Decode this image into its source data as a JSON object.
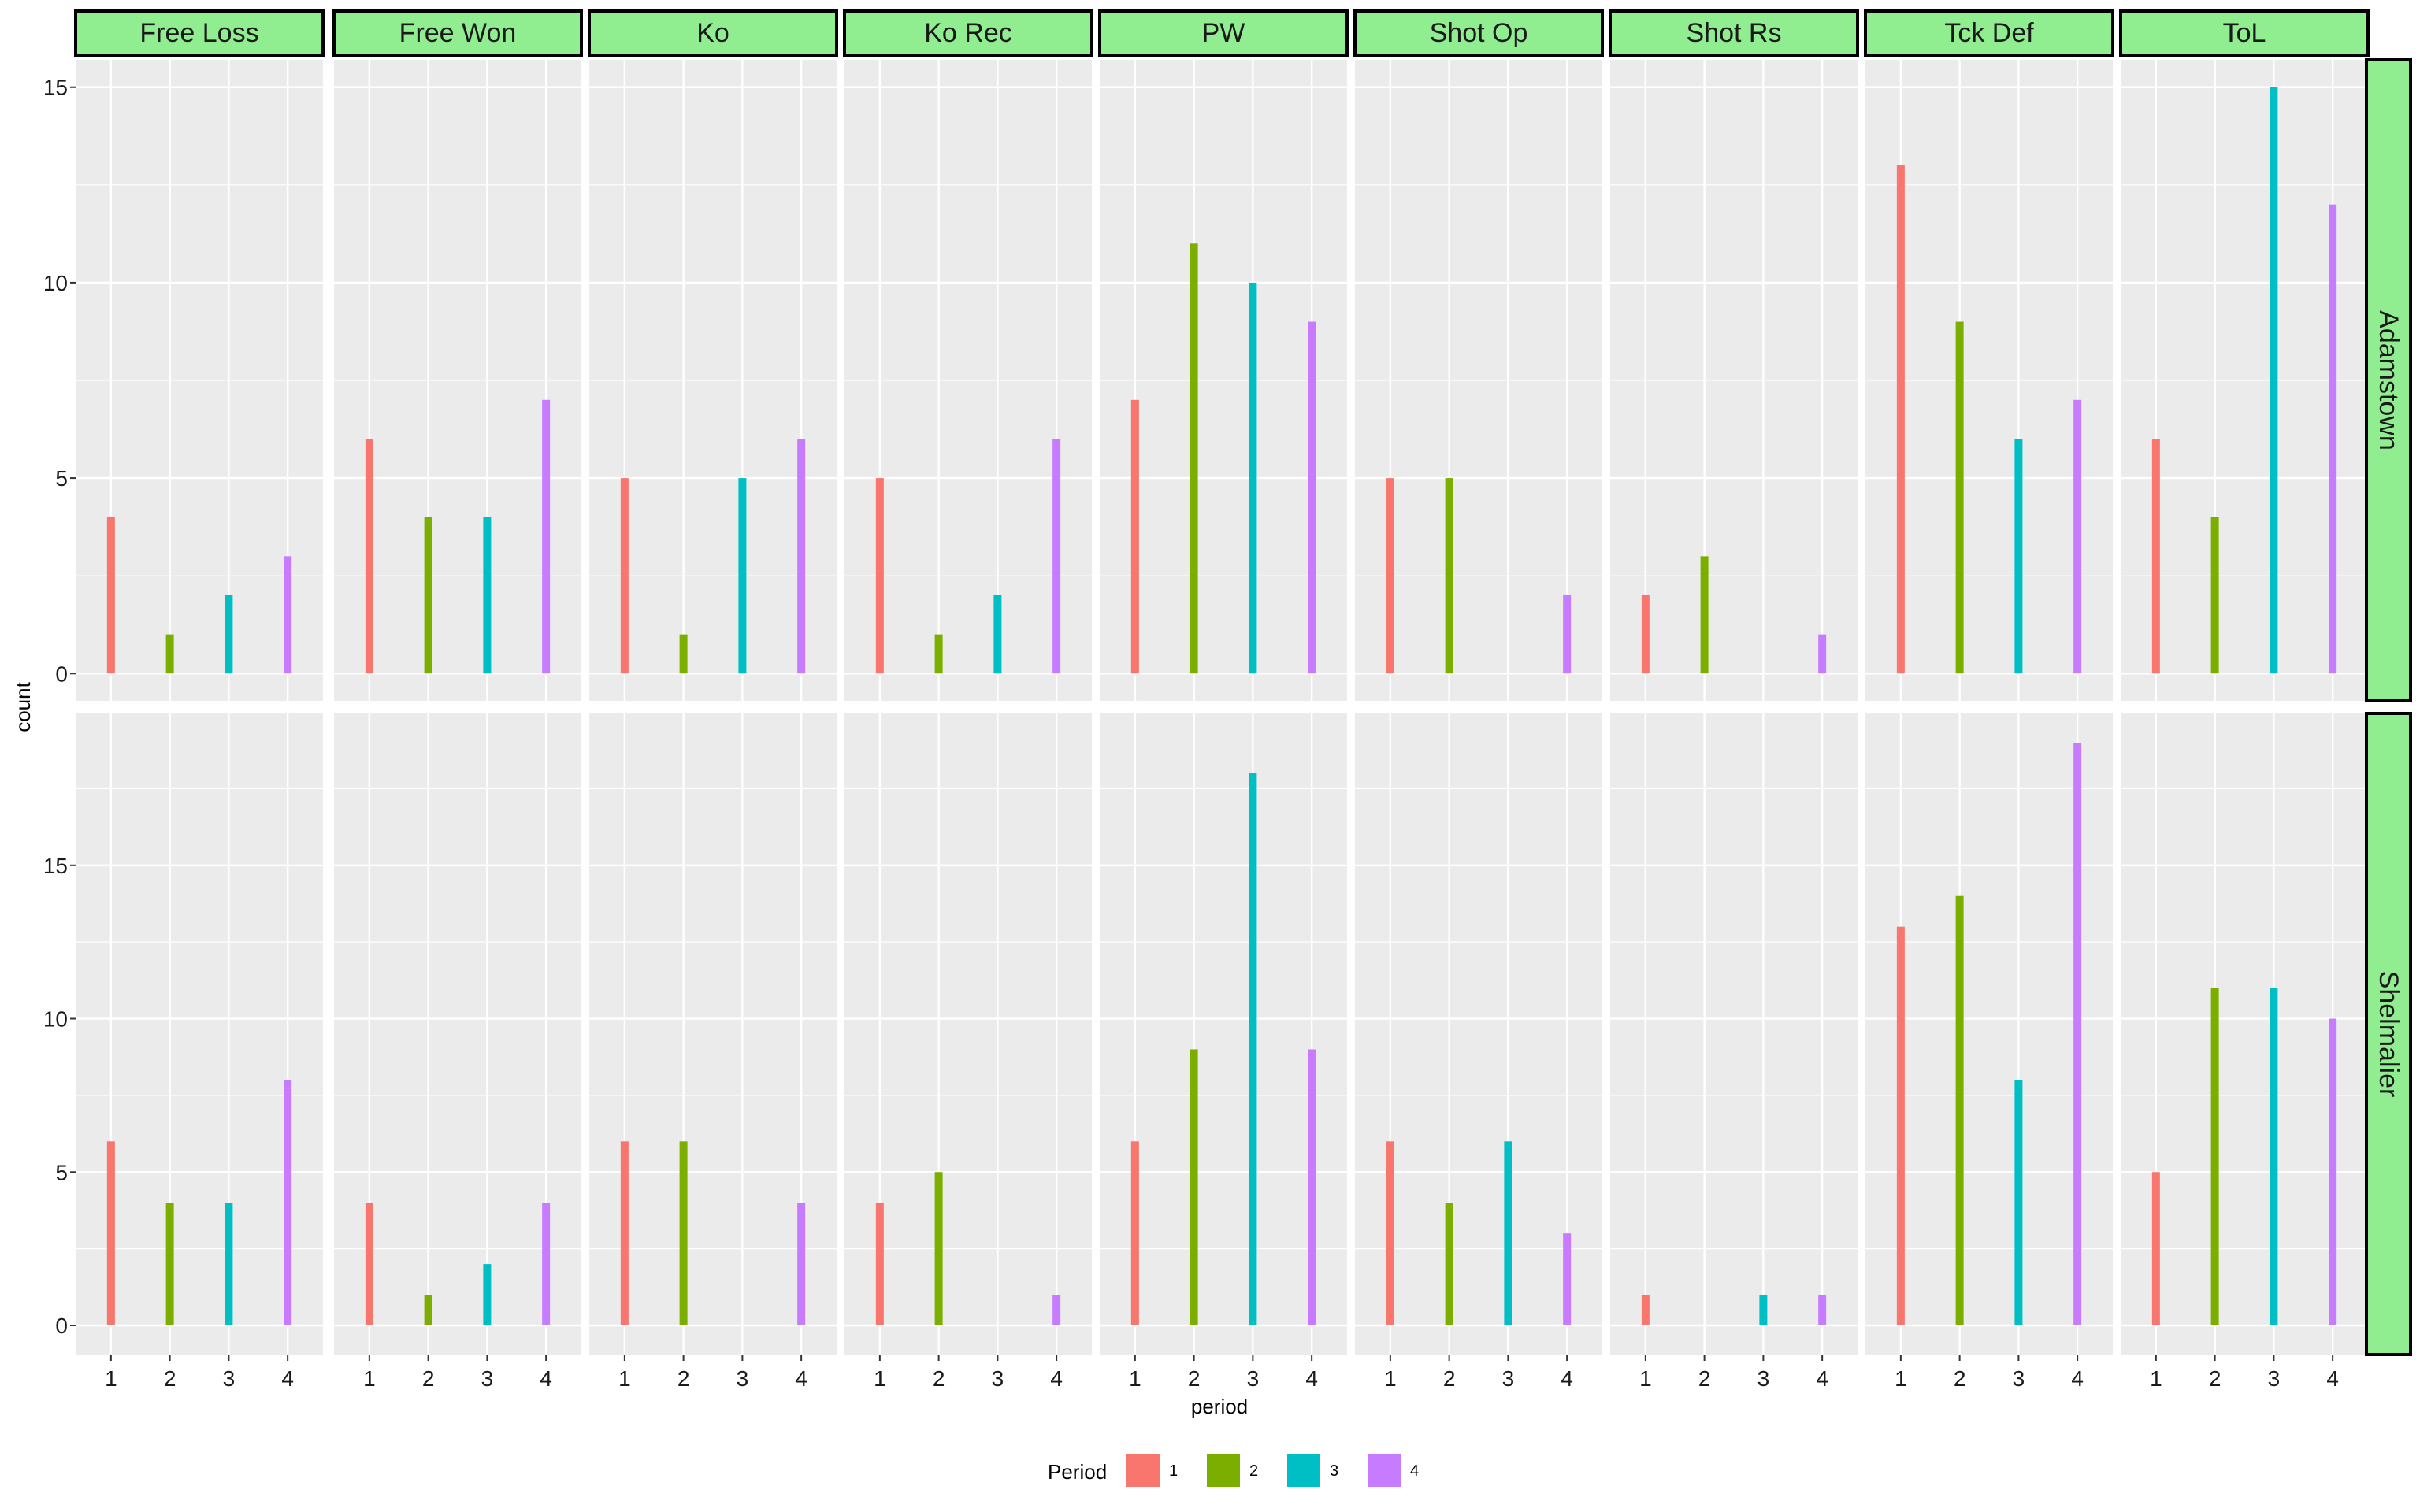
{
  "chart_data": {
    "type": "bar",
    "facet_cols": [
      "Free Loss",
      "Free Won",
      "Ko",
      "Ko Rec",
      "PW",
      "Shot Op",
      "Shot Rs",
      "Tck Def",
      "ToL"
    ],
    "facet_rows": [
      "Adamstown",
      "Shelmalier"
    ],
    "x_categories": [
      "1",
      "2",
      "3",
      "4"
    ],
    "xlabel": "period",
    "ylabel": "count",
    "legend": {
      "title": "Period",
      "placement": "bottom",
      "entries": [
        {
          "label": "1",
          "color": "#F8766D"
        },
        {
          "label": "2",
          "color": "#7CAE00"
        },
        {
          "label": "3",
          "color": "#00BFC4"
        },
        {
          "label": "4",
          "color": "#C77CFF"
        }
      ]
    },
    "rows": [
      {
        "name": "Adamstown",
        "ylim": [
          -0.7,
          15.7
        ],
        "yticks": [
          0,
          5,
          10,
          15
        ],
        "values": [
          [
            4,
            1,
            2,
            3
          ],
          [
            6,
            4,
            4,
            7
          ],
          [
            5,
            1,
            5,
            6
          ],
          [
            5,
            1,
            2,
            6
          ],
          [
            7,
            11,
            10,
            9
          ],
          [
            5,
            5,
            0,
            2
          ],
          [
            2,
            3,
            0,
            1
          ],
          [
            13,
            9,
            6,
            7
          ],
          [
            6,
            4,
            15,
            12
          ]
        ]
      },
      {
        "name": "Shelmalier",
        "ylim": [
          -0.95,
          19.95
        ],
        "yticks": [
          0,
          5,
          10,
          15
        ],
        "values": [
          [
            6,
            4,
            4,
            8
          ],
          [
            4,
            1,
            2,
            4
          ],
          [
            6,
            6,
            0,
            4
          ],
          [
            4,
            5,
            0,
            1
          ],
          [
            6,
            9,
            18,
            9
          ],
          [
            6,
            4,
            6,
            3
          ],
          [
            1,
            0,
            1,
            1
          ],
          [
            13,
            14,
            8,
            19
          ],
          [
            5,
            11,
            11,
            10
          ]
        ]
      }
    ],
    "strip_fill": "#90EE90",
    "panel_bg": "#EBEBEB",
    "grid": true
  }
}
